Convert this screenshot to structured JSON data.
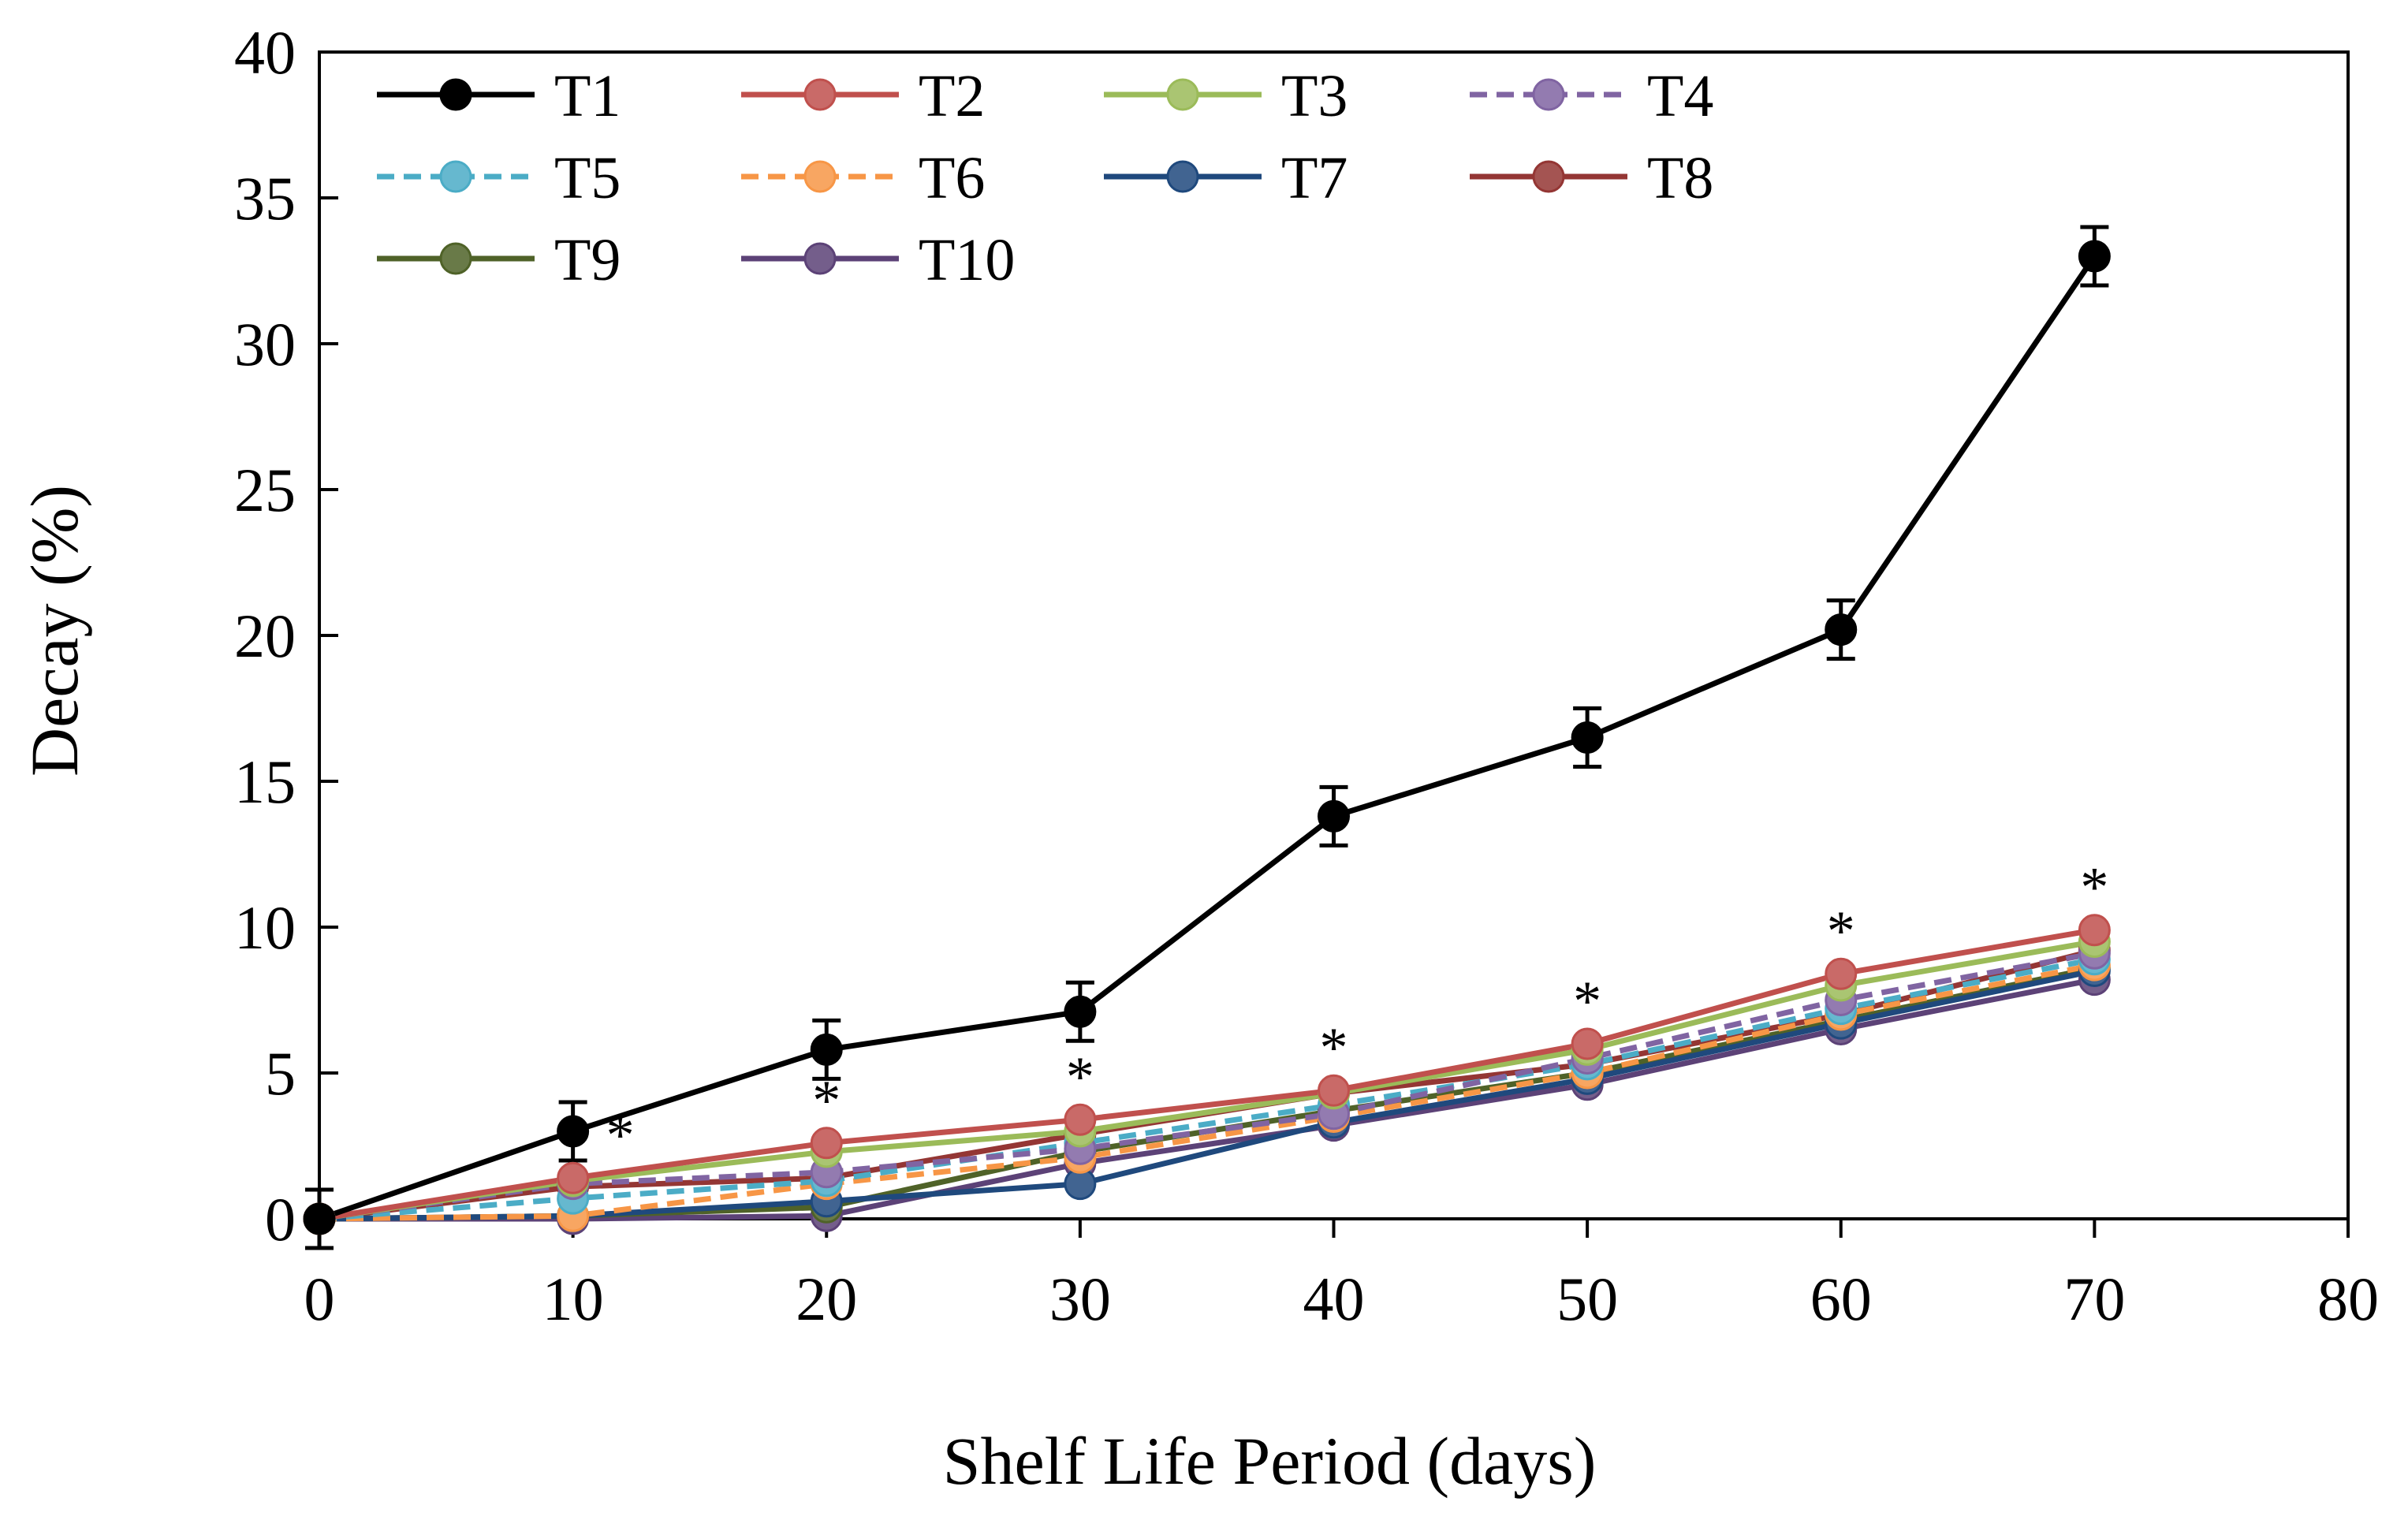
{
  "chart_data": {
    "type": "line",
    "title": "",
    "xlabel": "Shelf Life Period (days)",
    "ylabel": "Decay (%)",
    "xlim": [
      0,
      80
    ],
    "ylim": [
      0,
      40
    ],
    "xticks": [
      0,
      10,
      20,
      30,
      40,
      50,
      60,
      70,
      80
    ],
    "yticks": [
      0,
      5,
      10,
      15,
      20,
      25,
      30,
      35,
      40
    ],
    "xtick_labels": [
      "0",
      "10",
      "20",
      "30",
      "40",
      "50",
      "60",
      "70",
      "80"
    ],
    "ytick_labels": [
      "0",
      "5",
      "10",
      "15",
      "20",
      "25",
      "30",
      "35",
      "40"
    ],
    "grid": false,
    "legend_position": "top-left",
    "x": [
      0,
      10,
      20,
      30,
      40,
      50,
      60,
      70
    ],
    "series": [
      {
        "name": "T1",
        "color": "#000000",
        "dash": "solid",
        "values": [
          0,
          3.0,
          5.8,
          7.1,
          13.8,
          16.5,
          20.2,
          33.0
        ],
        "error": [
          1.0,
          1.0,
          1.0,
          1.0,
          1.0,
          1.0,
          1.0,
          1.0
        ]
      },
      {
        "name": "T2",
        "color": "#c0504d",
        "dash": "solid",
        "values": [
          0,
          1.4,
          2.6,
          3.4,
          4.4,
          6.0,
          8.4,
          9.9
        ]
      },
      {
        "name": "T3",
        "color": "#9bbb59",
        "dash": "solid",
        "values": [
          0,
          1.3,
          2.3,
          3.0,
          4.3,
          5.8,
          8.0,
          9.5
        ]
      },
      {
        "name": "T4",
        "color": "#8064a2",
        "dash": "dashed",
        "values": [
          0,
          1.2,
          1.6,
          2.4,
          3.6,
          5.5,
          7.5,
          9.1
        ]
      },
      {
        "name": "T5",
        "color": "#4bacc6",
        "dash": "dashed",
        "values": [
          0,
          0.7,
          1.3,
          2.6,
          3.9,
          5.3,
          7.2,
          8.9
        ]
      },
      {
        "name": "T6",
        "color": "#f79646",
        "dash": "dashed",
        "values": [
          0,
          0.1,
          1.2,
          2.1,
          3.5,
          5.0,
          7.0,
          8.7
        ]
      },
      {
        "name": "T7",
        "color": "#1f497d",
        "dash": "solid",
        "values": [
          0,
          0.1,
          0.6,
          1.2,
          3.3,
          4.8,
          6.7,
          8.5
        ]
      },
      {
        "name": "T8",
        "color": "#943634",
        "dash": "solid",
        "values": [
          0,
          1.1,
          1.4,
          2.9,
          4.3,
          5.3,
          7.0,
          9.2
        ]
      },
      {
        "name": "T9",
        "color": "#4f6228",
        "dash": "solid",
        "values": [
          0,
          0.1,
          0.4,
          2.3,
          3.7,
          5.0,
          6.8,
          8.6
        ]
      },
      {
        "name": "T10",
        "color": "#5c4277",
        "dash": "solid",
        "values": [
          0,
          0.0,
          0.1,
          1.9,
          3.2,
          4.6,
          6.5,
          8.2
        ]
      }
    ],
    "significance_markers": [
      {
        "x": 10,
        "label": "*"
      },
      {
        "x": 20,
        "label": "*"
      },
      {
        "x": 30,
        "label": "*"
      },
      {
        "x": 40,
        "label": "*"
      },
      {
        "x": 50,
        "label": "*"
      },
      {
        "x": 60,
        "label": "*"
      },
      {
        "x": 70,
        "label": "*"
      }
    ]
  }
}
